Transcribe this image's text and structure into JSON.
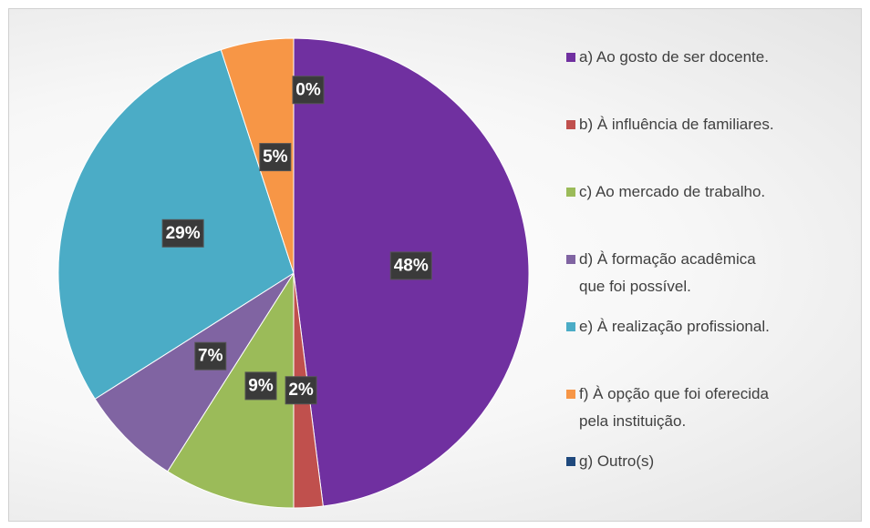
{
  "chart_data": {
    "type": "pie",
    "categories": [
      "a) Ao gosto de ser docente.",
      "b) À influência de familiares.",
      "c) Ao mercado de trabalho.",
      "d) À formação acadêmica\nque foi possível.",
      "e) À realização profissional.",
      "f) À opção que foi oferecida\npela instituição.",
      "g) Outro(s)"
    ],
    "values": [
      48,
      2,
      9,
      7,
      29,
      5,
      0
    ],
    "value_labels": [
      "48%",
      "2%",
      "9%",
      "7%",
      "29%",
      "5%",
      "0%"
    ],
    "colors": [
      "#7030a0",
      "#c0504d",
      "#9bbb59",
      "#8064a2",
      "#4bacc6",
      "#f79646",
      "#1f497d"
    ],
    "legend": "right"
  }
}
